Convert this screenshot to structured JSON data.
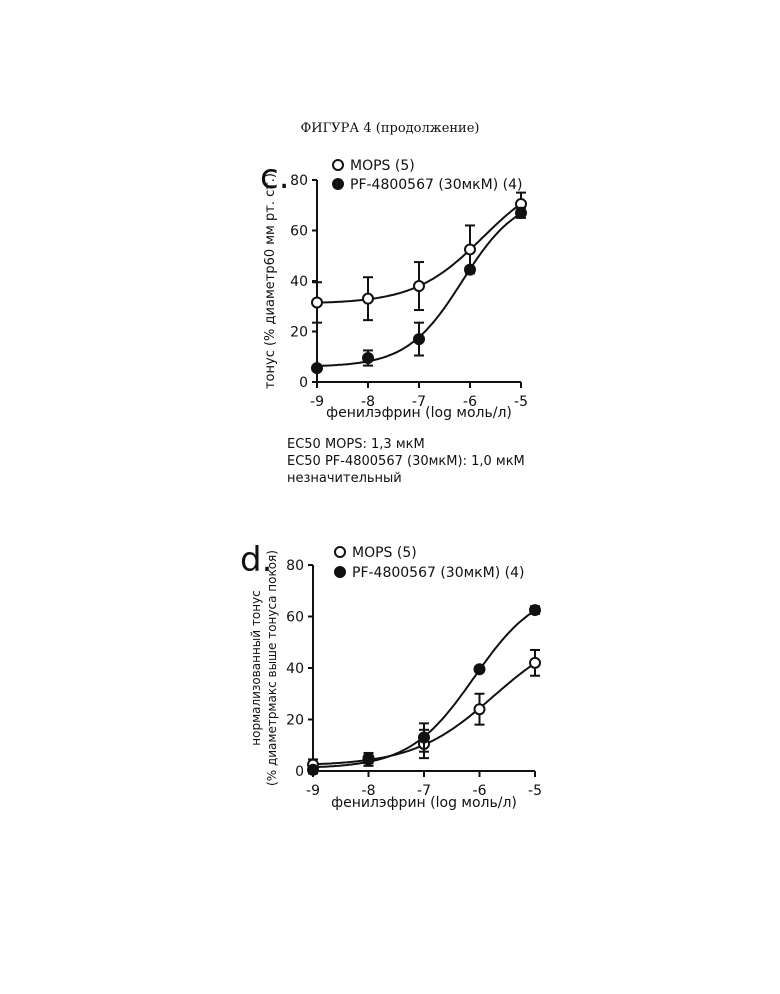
{
  "page": {
    "title": "ФИГУРА 4 (продолжение)",
    "notes": [
      "EC50 MOPS: 1,3 мкМ",
      "EC50 PF-4800567 (30мкМ): 1,0 мкМ",
      "незначительный"
    ]
  },
  "chart_data": [
    {
      "type": "scatter",
      "panel_label": "c.",
      "xlabel": "фенилэфрин (log моль/л)",
      "ylabel": [
        "тонус (% диаметр60 мм рт. ст.)"
      ],
      "xlim": [
        -9,
        -5
      ],
      "ylim": [
        0,
        80
      ],
      "x_ticks": [
        -9,
        -8,
        -7,
        -6,
        -5
      ],
      "y_ticks": [
        0,
        20,
        40,
        60,
        80
      ],
      "grid": false,
      "legend_position": "top-left",
      "series": [
        {
          "name": "MOPS (5)",
          "marker": "open-circle",
          "x": [
            -9,
            -8,
            -7,
            -6,
            -5
          ],
          "y": [
            31.5,
            33,
            38,
            52.5,
            70.5
          ],
          "err": [
            8,
            8.5,
            9.5,
            9.5,
            4.5
          ]
        },
        {
          "name": "PF-4800567 (30мкМ) (4)",
          "marker": "filled-circle",
          "x": [
            -9,
            -8,
            -7,
            -6,
            -5
          ],
          "y": [
            5.5,
            9.5,
            17,
            44.5,
            67
          ],
          "err": [
            0.5,
            3,
            6.5,
            1,
            2
          ]
        }
      ]
    },
    {
      "type": "scatter",
      "panel_label": "d.",
      "xlabel": "фенилэфрин (log моль/л)",
      "ylabel": [
        "нормализованный тонус",
        "(% диаметрмакс выше тонуса покоя)"
      ],
      "xlim": [
        -9,
        -5
      ],
      "ylim": [
        0,
        80
      ],
      "x_ticks": [
        -9,
        -8,
        -7,
        -6,
        -5
      ],
      "y_ticks": [
        0,
        20,
        40,
        60,
        80
      ],
      "grid": false,
      "legend_position": "top-left",
      "series": [
        {
          "name": "MOPS (5)",
          "marker": "open-circle",
          "x": [
            -9,
            -8,
            -7,
            -6,
            -5
          ],
          "y": [
            2.5,
            4.5,
            10.5,
            24,
            42
          ],
          "err": [
            2,
            2.5,
            5.5,
            6,
            5
          ]
        },
        {
          "name": "PF-4800567 (30мкМ) (4)",
          "marker": "filled-circle",
          "x": [
            -9,
            -8,
            -7,
            -6,
            -5
          ],
          "y": [
            0.5,
            5,
            13,
            39.5,
            62.5
          ],
          "err": [
            1.5,
            2,
            5.5,
            1,
            1.5
          ]
        }
      ]
    }
  ]
}
